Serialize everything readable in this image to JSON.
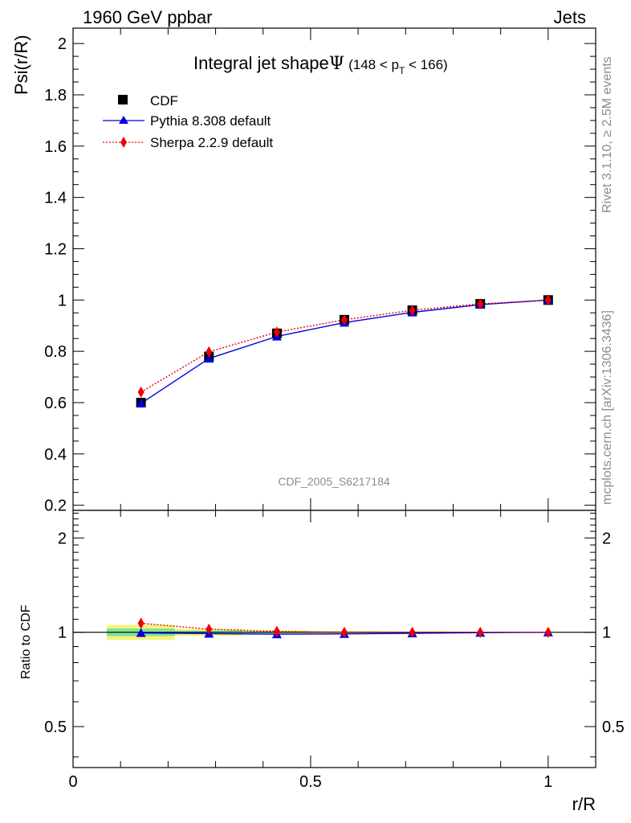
{
  "header": {
    "left": "1960 GeV ppbar",
    "right": "Jets"
  },
  "side_labels": {
    "rivet": "Rivet 3.1.10, ≥ 2.5M events",
    "mcplots": "mcplots.cern.ch [arXiv:1306.3436]"
  },
  "watermark": "CDF_2005_S6217184",
  "chart_data": [
    {
      "type": "line",
      "title_main": "Integral jet shape",
      "title_symbol": "Ψ",
      "title_range_pre": "(148 < p",
      "title_range_sub": "T",
      "title_range_post": " < 166)",
      "ylabel": "Psi(r/R)",
      "xlim": [
        0,
        1.1
      ],
      "ylim": [
        0.18,
        2.06
      ],
      "y_ticks": [
        0.2,
        0.4,
        0.6,
        0.8,
        1,
        1.2,
        1.4,
        1.6,
        1.8,
        2
      ],
      "y_tick_labels": [
        "0.2",
        "0.4",
        "0.6",
        "0.8",
        "1",
        "1.2",
        "1.4",
        "1.6",
        "1.8",
        "2"
      ],
      "legend_position": "top-left",
      "x": [
        0.143,
        0.286,
        0.429,
        0.571,
        0.714,
        0.857,
        1.0
      ],
      "series": [
        {
          "name": "CDF",
          "color": "#000000",
          "marker": "square",
          "values": [
            0.6,
            0.78,
            0.87,
            0.923,
            0.96,
            0.985,
            1.0
          ],
          "band_low": [
            0.584,
            0.77,
            0.864,
            0.918,
            0.957,
            0.983,
            1.0
          ],
          "band_high": [
            0.616,
            0.79,
            0.876,
            0.928,
            0.963,
            0.987,
            1.0
          ]
        },
        {
          "name": "Pythia 8.308 default",
          "color": "#0000dd",
          "marker": "triangle",
          "line": "solid",
          "values": [
            0.597,
            0.772,
            0.858,
            0.912,
            0.952,
            0.982,
            1.0
          ]
        },
        {
          "name": "Sherpa 2.2.9 default",
          "color": "#ee0000",
          "marker": "diamond",
          "line": "dotted",
          "values": [
            0.641,
            0.798,
            0.875,
            0.923,
            0.96,
            0.985,
            1.0
          ]
        }
      ]
    },
    {
      "type": "line",
      "ylabel": "Ratio to CDF",
      "xlabel": "r/R",
      "xlim": [
        0,
        1.1
      ],
      "ylim": [
        0.37,
        2.45
      ],
      "y_ticks": [
        0.5,
        1,
        2
      ],
      "y_tick_labels": [
        "0.5",
        "1",
        "2"
      ],
      "x_ticks": [
        0,
        0.5,
        1
      ],
      "x_tick_labels": [
        "0",
        "0.5",
        "1"
      ],
      "x": [
        0.143,
        0.286,
        0.429,
        0.571,
        0.714,
        0.857,
        1.0
      ],
      "bins": [
        [
          0.071,
          0.214
        ],
        [
          0.214,
          0.357
        ],
        [
          0.357,
          0.5
        ],
        [
          0.5,
          0.643
        ],
        [
          0.643,
          0.786
        ],
        [
          0.786,
          0.929
        ],
        [
          0.929,
          1.071
        ]
      ],
      "band_stat": [
        [
          0.972,
          1.028
        ],
        [
          0.987,
          1.013
        ],
        [
          0.993,
          1.007
        ],
        [
          0.995,
          1.005
        ],
        [
          0.997,
          1.003
        ],
        [
          0.998,
          1.002
        ],
        [
          0.999,
          1.001
        ]
      ],
      "band_total": [
        [
          0.945,
          1.055
        ],
        [
          0.975,
          1.025
        ],
        [
          0.986,
          1.014
        ],
        [
          0.991,
          1.009
        ],
        [
          0.994,
          1.006
        ],
        [
          0.996,
          1.004
        ],
        [
          0.998,
          1.002
        ]
      ],
      "band_stat_color": "#7fe39a",
      "band_total_color": "#f5f57a",
      "series": [
        {
          "name": "Pythia 8.308 default",
          "color": "#0000dd",
          "marker": "triangle",
          "line": "solid",
          "values": [
            0.995,
            0.99,
            0.986,
            0.988,
            0.992,
            0.997,
            1.0
          ]
        },
        {
          "name": "Sherpa 2.2.9 default",
          "color": "#ee0000",
          "marker": "diamond",
          "line": "dotted",
          "values": [
            1.068,
            1.023,
            1.006,
            1.0,
            1.0,
            1.0,
            1.0
          ]
        }
      ]
    }
  ]
}
